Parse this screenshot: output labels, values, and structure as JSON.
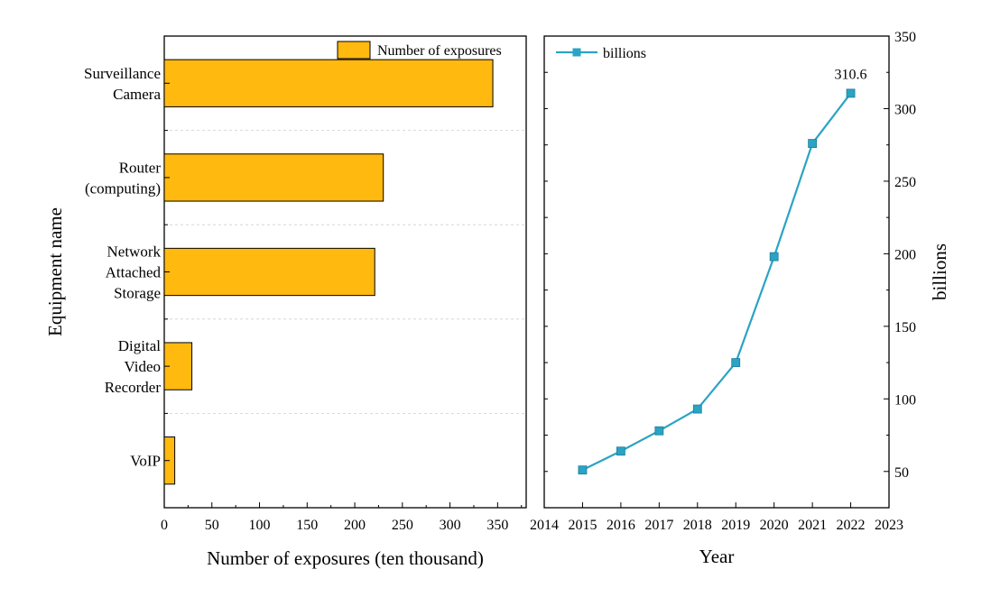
{
  "chart_data": [
    {
      "type": "bar",
      "orientation": "horizontal",
      "categories": [
        [
          "Surveillance",
          "Camera"
        ],
        [
          "Router",
          "(computing)"
        ],
        [
          "Network",
          "Attached",
          "Storage"
        ],
        [
          "Digital",
          "Video",
          "Recorder"
        ],
        [
          "VoIP"
        ]
      ],
      "series": [
        {
          "name": "Number of exposures",
          "values": [
            345,
            230,
            221,
            29,
            11
          ]
        }
      ],
      "xlabel": "Number of exposures (ten thousand)",
      "ylabel": "Equipment name",
      "xlim": [
        0,
        380
      ],
      "xticks": [
        "0",
        "50",
        "100",
        "150",
        "200",
        "250",
        "300",
        "350"
      ],
      "grid": "horizontal dashed separators",
      "legend": "top-right",
      "colors": {
        "bar": "#FFB90F",
        "edge": "#000000"
      }
    },
    {
      "type": "line",
      "x": [
        2015,
        2016,
        2017,
        2018,
        2019,
        2020,
        2021,
        2022
      ],
      "series": [
        {
          "name": "billions",
          "values": [
            51,
            64,
            78,
            93,
            125,
            198,
            276,
            310.6
          ]
        }
      ],
      "annotations": [
        {
          "x": 2022,
          "text": "310.6"
        }
      ],
      "xlabel": "Year",
      "ylabel": "billions",
      "xlim": [
        2014,
        2023
      ],
      "ylim": [
        25,
        350
      ],
      "xticks": [
        "2014",
        "2015",
        "2016",
        "2017",
        "2018",
        "2019",
        "2020",
        "2021",
        "2022",
        "2023"
      ],
      "yticks": [
        "50",
        "100",
        "150",
        "200",
        "250",
        "300",
        "350"
      ],
      "yaxis_side": "right",
      "grid": "off",
      "legend": "top-left",
      "colors": {
        "line": "#2AA3C4",
        "marker": "#2AA3C4"
      }
    }
  ]
}
